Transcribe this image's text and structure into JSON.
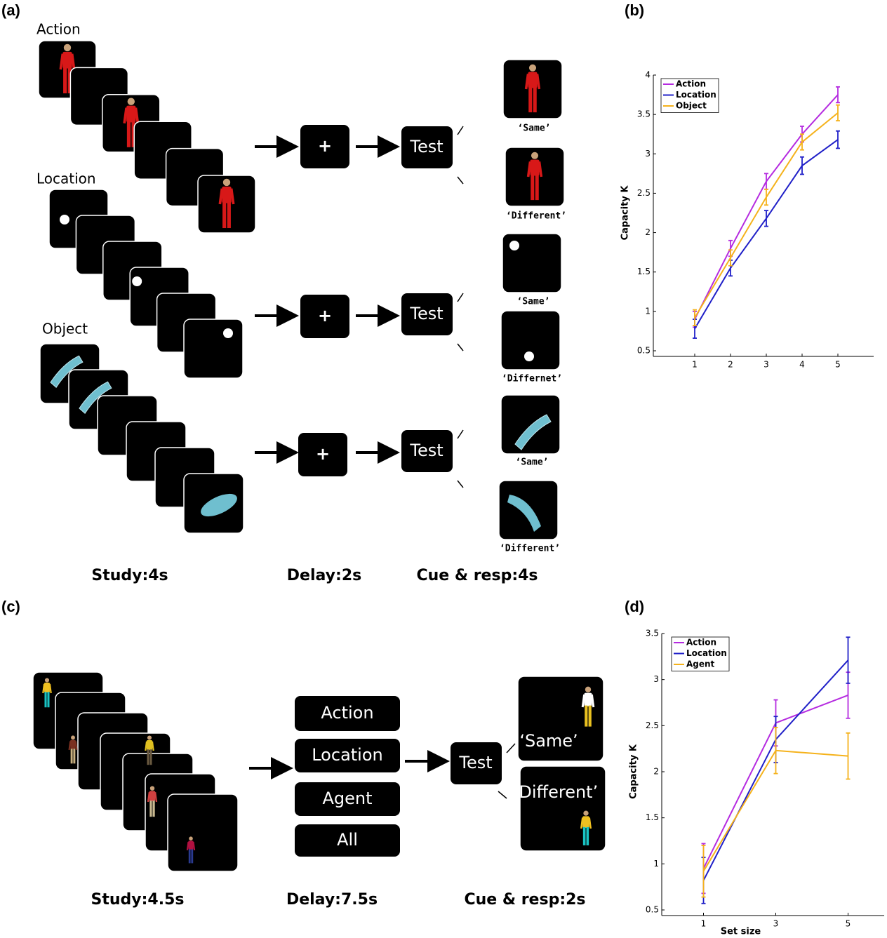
{
  "panels": [
    "(a)",
    "(b)",
    "(c)",
    "(d)"
  ],
  "panel_a": {
    "rows": [
      {
        "label": "Action",
        "fixation": "+",
        "test": "Test",
        "responses": [
          "‘Same’",
          "‘Different’"
        ]
      },
      {
        "label": "Location",
        "fixation": "+",
        "test": "Test",
        "responses": [
          "‘Same’",
          "‘Differnet’"
        ]
      },
      {
        "label": "Object",
        "fixation": "+",
        "test": "Test",
        "responses": [
          "‘Same’",
          "‘Different’"
        ]
      }
    ],
    "timeline": [
      "Study:4s",
      "Delay:2s",
      "Cue & resp:4s"
    ]
  },
  "panel_c": {
    "cues": [
      "Action",
      "Location",
      "Agent",
      "All"
    ],
    "test": "Test",
    "responses": [
      "‘Same’",
      "‘Different’"
    ],
    "timeline": [
      "Study:4.5s",
      "Delay:7.5s",
      "Cue & resp:2s"
    ]
  },
  "chart_data": [
    {
      "type": "line",
      "y_label": "Capacity K",
      "x": [
        1,
        2,
        3,
        4,
        5
      ],
      "xlim": [
        0,
        6
      ],
      "xticks": [
        1,
        2,
        3,
        4,
        5
      ],
      "ylim": [
        0.5,
        4
      ],
      "yticks": [
        0.5,
        1,
        1.5,
        2,
        2.5,
        3,
        3.5,
        4
      ],
      "legend": "upper left",
      "series": [
        {
          "name": "Action",
          "color": "#b52be0",
          "values": [
            0.9,
            1.8,
            2.65,
            3.25,
            3.75
          ],
          "errors": [
            0.1,
            0.1,
            0.1,
            0.1,
            0.1
          ]
        },
        {
          "name": "Location",
          "color": "#2020c8",
          "values": [
            0.78,
            1.55,
            2.18,
            2.85,
            3.18
          ],
          "errors": [
            0.12,
            0.1,
            0.1,
            0.11,
            0.11
          ]
        },
        {
          "name": "Object",
          "color": "#f5b21b",
          "values": [
            0.92,
            1.68,
            2.45,
            3.15,
            3.52
          ],
          "errors": [
            0.1,
            0.1,
            0.1,
            0.1,
            0.1
          ]
        }
      ]
    },
    {
      "type": "line",
      "x_label": "Set size",
      "y_label": "Capacity K",
      "x": [
        1,
        3,
        5
      ],
      "xlim": [
        0,
        6
      ],
      "xticks": [
        1,
        3,
        5
      ],
      "ylim": [
        0.5,
        3.5
      ],
      "yticks": [
        0.5,
        1,
        1.5,
        2,
        2.5,
        3,
        3.5
      ],
      "legend": "upper left",
      "series": [
        {
          "name": "Action",
          "color": "#b52be0",
          "values": [
            0.95,
            2.53,
            2.83
          ],
          "errors": [
            0.27,
            0.25,
            0.25
          ]
        },
        {
          "name": "Location",
          "color": "#2020c8",
          "values": [
            0.82,
            2.35,
            3.21
          ],
          "errors": [
            0.25,
            0.25,
            0.25
          ]
        },
        {
          "name": "Agent",
          "color": "#f5b21b",
          "values": [
            0.92,
            2.23,
            2.17
          ],
          "errors": [
            0.28,
            0.25,
            0.25
          ]
        }
      ]
    }
  ]
}
